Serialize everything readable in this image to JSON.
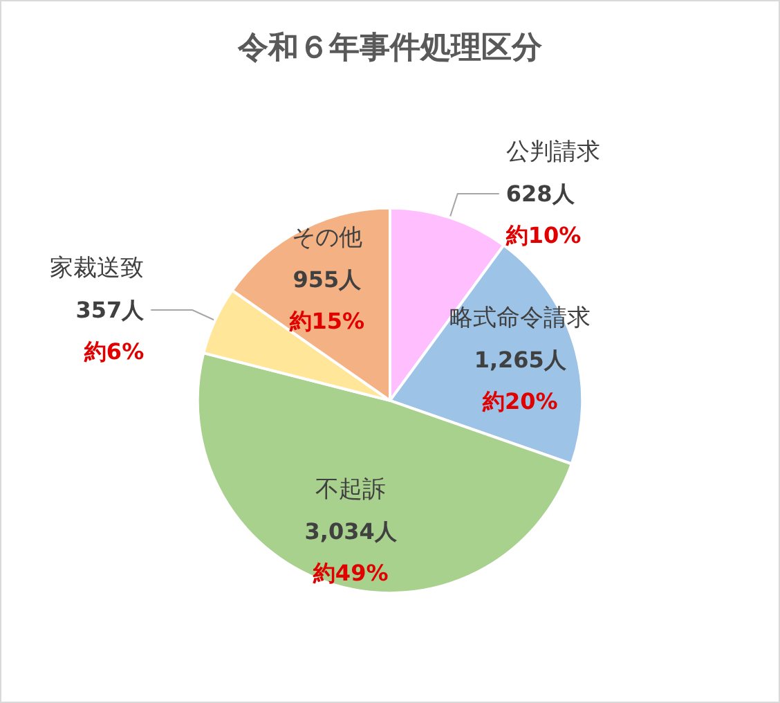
{
  "chart_data": {
    "type": "pie",
    "title": "令和６年事件処理区分",
    "categories": [
      "公判請求",
      "略式命令請求",
      "不起訴",
      "家裁送致",
      "その他"
    ],
    "values": [
      628,
      1265,
      3034,
      357,
      955
    ],
    "colors": [
      "#ffbfff",
      "#9dc3e6",
      "#a9d18e",
      "#ffe699",
      "#f4b183"
    ],
    "value_labels": [
      "628人",
      "1,265人",
      "3,034人",
      "357人",
      "955人"
    ],
    "annotations": [
      "約10%",
      "約20%",
      "約49%",
      "約6%",
      "約15%"
    ],
    "legend": false
  }
}
